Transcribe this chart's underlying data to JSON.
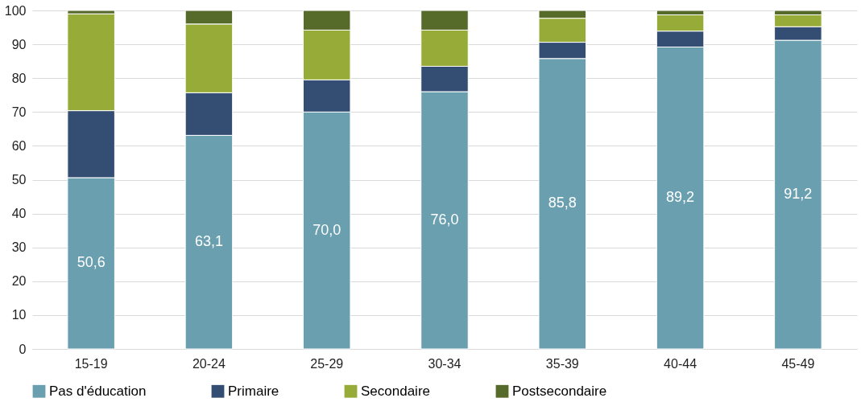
{
  "chart_data": {
    "type": "bar",
    "stacked": true,
    "categories": [
      "15-19",
      "20-24",
      "25-29",
      "30-34",
      "35-39",
      "40-44",
      "45-49"
    ],
    "series": [
      {
        "name": "Pas d'éducation",
        "color": "#6a9fb0",
        "values": [
          50.6,
          63.1,
          70.0,
          76.0,
          85.8,
          89.2,
          91.2
        ],
        "value_labels": [
          "50,6",
          "63,1",
          "70,0",
          "76,0",
          "85,8",
          "89,2",
          "91,2"
        ]
      },
      {
        "name": "Primaire",
        "color": "#344d73",
        "values": [
          19.8,
          12.6,
          9.5,
          7.5,
          4.8,
          4.7,
          4.0
        ]
      },
      {
        "name": "Secondaire",
        "color": "#97ab38",
        "values": [
          28.6,
          20.3,
          14.7,
          10.7,
          7.1,
          4.8,
          3.5
        ]
      },
      {
        "name": "Postsecondaire",
        "color": "#566a2a",
        "values": [
          1.0,
          4.0,
          5.8,
          5.8,
          2.3,
          1.3,
          1.3
        ]
      }
    ],
    "ylim": [
      0,
      100
    ],
    "yticks": [
      0,
      10,
      20,
      30,
      40,
      50,
      60,
      70,
      80,
      90,
      100
    ],
    "grid": "y",
    "legend": "bottom"
  }
}
